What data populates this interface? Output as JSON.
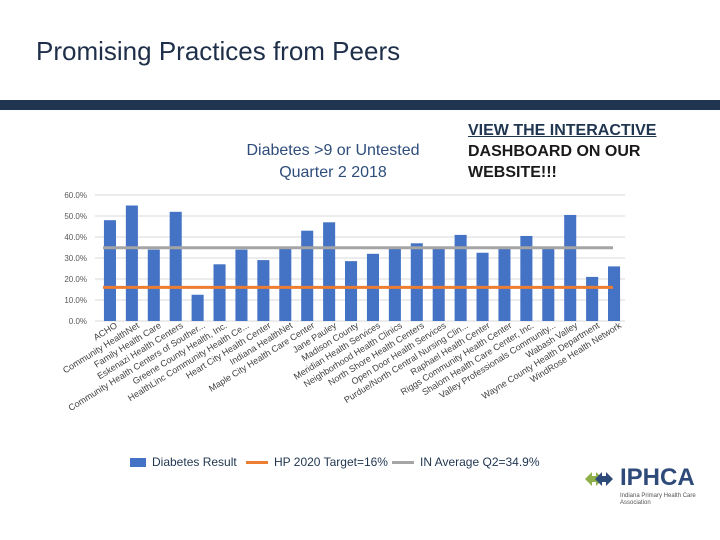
{
  "slide": {
    "title": "Promising Practices from Peers"
  },
  "callout": {
    "line1": "VIEW THE INTERACTIVE",
    "line2": "DASHBOARD ON OUR",
    "line3": "WEBSITE!!!"
  },
  "logo": {
    "name": "IPHCA",
    "subtitle_line1": "Indiana Primary Health Care",
    "subtitle_line2": "Association"
  },
  "colors": {
    "bar": "#4472c4",
    "target": "#ed7d31",
    "average": "#a5a5a5",
    "title_bar": "#1f3550"
  },
  "chart_data": {
    "type": "bar",
    "title_line1": "Diabetes >9 or Untested",
    "title_line2": "Quarter 2 2018",
    "ylim": [
      0,
      60
    ],
    "yticks": [
      "0.0%",
      "10.0%",
      "20.0%",
      "30.0%",
      "40.0%",
      "50.0%",
      "60.0%"
    ],
    "ytick_values": [
      0,
      10,
      20,
      30,
      40,
      50,
      60
    ],
    "categories": [
      "ACHO",
      "Community HealthNet",
      "Family Health Care",
      "Eskenazi Health Centers",
      "Community Health Centers of Souther...",
      "Greene County Health, Inc.",
      "HealthLinc Community Health Ce...",
      "Heart City Health Center",
      "Indiana HealthNet",
      "Maple City Health Care Center",
      "Jane Pauley",
      "Madison County",
      "Meridian Health Services",
      "Neighborhood Health Clinics",
      "North Shore Health Centers",
      "Open Door Health Services",
      "Purdue/North Central Nursing Clin...",
      "Raphael Health Center",
      "Riggs Community Health Center",
      "Shalom Health Care Center, Inc.",
      "Valley Professionals Community...",
      "Wabash Valley",
      "Wayne County Health Department",
      "WindRose Health Network"
    ],
    "series": [
      {
        "name": "Diabetes Result",
        "values": [
          48,
          55,
          34,
          52,
          12.5,
          27,
          34,
          29,
          35,
          43,
          47,
          28.5,
          32,
          35,
          37,
          35,
          41,
          32.5,
          35,
          40.5,
          35,
          50.5,
          21,
          26
        ]
      }
    ],
    "reference_lines": [
      {
        "name": "HP 2020 Target=16%",
        "value": 16
      },
      {
        "name": "IN Average Q2=34.9%",
        "value": 34.9
      }
    ],
    "legend": [
      "Diabetes Result",
      "HP 2020 Target=16%",
      "IN Average Q2=34.9%"
    ]
  }
}
